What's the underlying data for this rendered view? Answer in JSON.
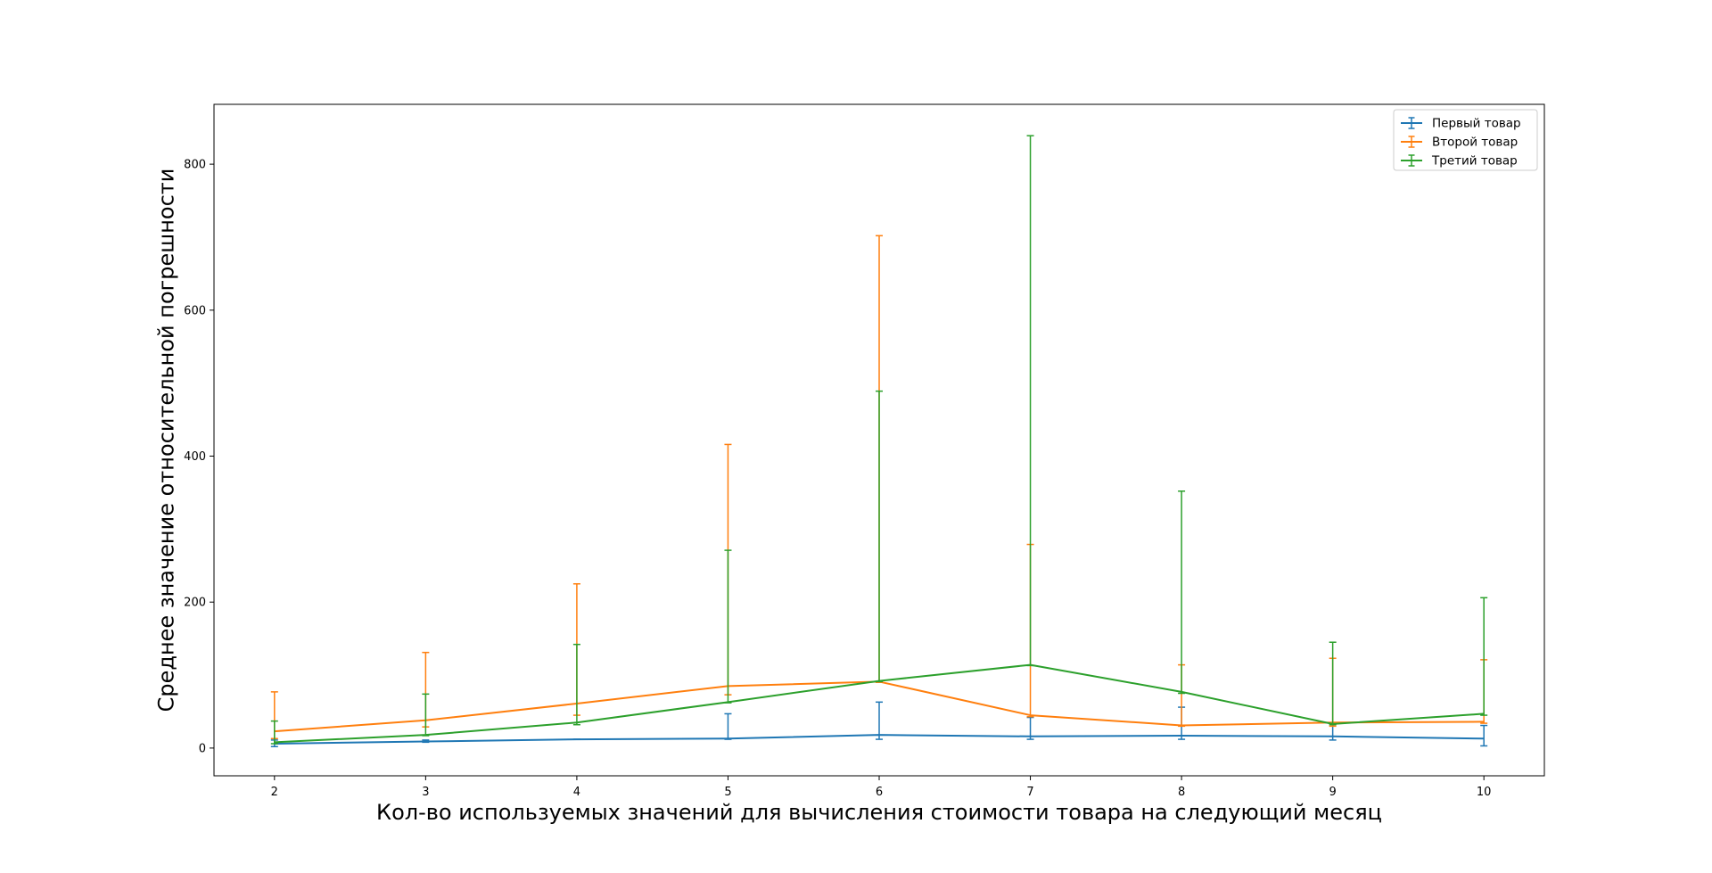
{
  "chart_data": {
    "type": "line",
    "error_bars": true,
    "xlabel": "Кол-во используемых значений для вычисления стоимости товара на следующий месяц",
    "ylabel": "Среднее значение относительной погрешности",
    "x": [
      2,
      3,
      4,
      5,
      6,
      7,
      8,
      9,
      10
    ],
    "xticks": [
      2,
      3,
      4,
      5,
      6,
      7,
      8,
      9,
      10
    ],
    "yticks": [
      0,
      200,
      400,
      600,
      800
    ],
    "xlim": [
      1.6,
      10.4
    ],
    "ylim": [
      -38,
      882
    ],
    "grid": false,
    "legend_position": "top-right",
    "series": [
      {
        "name": "Первый товар",
        "color": "#1f77b4",
        "values": [
          6,
          9,
          12,
          13,
          18,
          16,
          17,
          16,
          13
        ],
        "lower": [
          2,
          8,
          12,
          12,
          12,
          12,
          12,
          11,
          3
        ],
        "upper": [
          11,
          11,
          12,
          47,
          63,
          42,
          56,
          34,
          31
        ]
      },
      {
        "name": "Второй товар",
        "color": "#ff7f0e",
        "values": [
          23,
          38,
          61,
          85,
          91,
          45,
          31,
          35,
          36
        ],
        "lower": [
          13,
          29,
          45,
          73,
          90,
          43,
          30,
          30,
          34
        ],
        "upper": [
          77,
          131,
          225,
          416,
          702,
          279,
          114,
          123,
          121
        ]
      },
      {
        "name": "Третий товар",
        "color": "#2ca02c",
        "values": [
          8,
          18,
          35,
          63,
          92,
          114,
          77,
          33,
          47
        ],
        "lower": [
          6,
          17,
          32,
          62,
          91,
          113,
          75,
          32,
          45
        ],
        "upper": [
          37,
          74,
          142,
          271,
          489,
          839,
          352,
          145,
          206
        ]
      }
    ]
  }
}
